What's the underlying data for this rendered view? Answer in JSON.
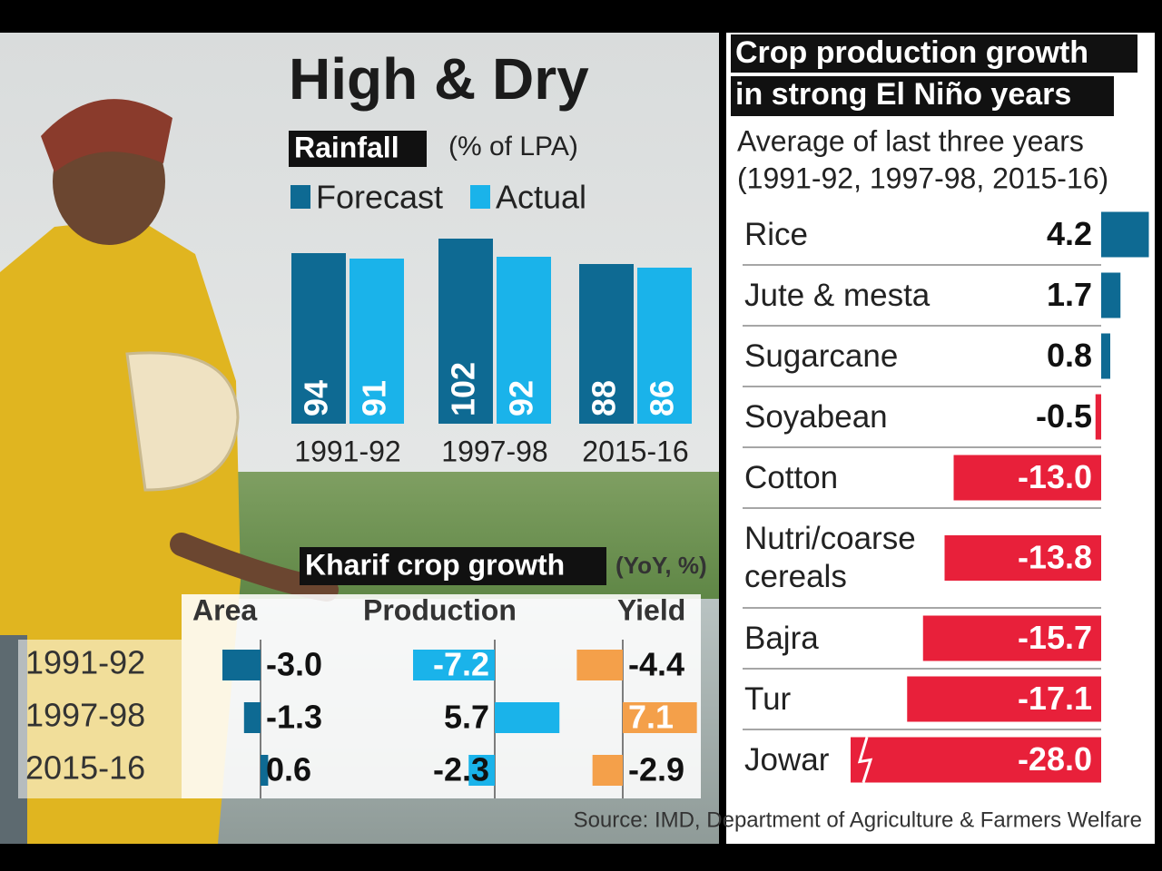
{
  "chart_data": [
    {
      "type": "bar",
      "title": "High & Dry",
      "subtitle": "Rainfall",
      "note": "(% of LPA)",
      "categories": [
        "1991-92",
        "1997-98",
        "2015-16"
      ],
      "series": [
        {
          "name": "Forecast",
          "color": "#0e6a93",
          "values": [
            94,
            102,
            88
          ]
        },
        {
          "name": "Actual",
          "color": "#1ab3ea",
          "values": [
            91,
            92,
            86
          ]
        }
      ]
    },
    {
      "type": "table_bar",
      "title": "Kharif crop growth",
      "note": "(YoY, %)",
      "categories": [
        "1991-92",
        "1997-98",
        "2015-16"
      ],
      "series": [
        {
          "name": "Area",
          "color": "#0e6a93",
          "values": [
            -3.0,
            -1.3,
            0.6
          ],
          "value_labels": [
            "-3.0",
            "-1.3",
            "0.6"
          ]
        },
        {
          "name": "Production",
          "color": "#1ab3ea",
          "values": [
            -7.2,
            5.7,
            -2.3
          ],
          "value_labels": [
            "-7.2",
            "5.7",
            "-2.3"
          ]
        },
        {
          "name": "Yield",
          "color": "#f4a04a",
          "values": [
            -4.4,
            7.1,
            -2.9
          ],
          "value_labels": [
            "-4.4",
            "7.1",
            "-2.9"
          ]
        }
      ]
    },
    {
      "type": "hbar",
      "title": [
        "Crop production growth",
        "in strong El Niño years"
      ],
      "subtitle": [
        "Average of last three years",
        "(1991-92, 1997-98, 2015-16)"
      ],
      "categories": [
        "Rice",
        "Jute & mesta",
        "Sugarcane",
        "Soyabean",
        "Cotton",
        "Nutri/coarse cereals",
        "Bajra",
        "Tur",
        "Jowar"
      ],
      "values": [
        4.2,
        1.7,
        0.8,
        -0.5,
        -13.0,
        -13.8,
        -15.7,
        -17.1,
        -28.0
      ],
      "value_labels": [
        "4.2",
        "1.7",
        "0.8",
        "-0.5",
        "-13.0",
        "-13.8",
        "-15.7",
        "-17.1",
        "-28.0"
      ],
      "positive_color": "#0e6a93",
      "negative_color": "#e8203a"
    }
  ],
  "source": "Source: IMD, Department of Agriculture & Farmers Welfare"
}
